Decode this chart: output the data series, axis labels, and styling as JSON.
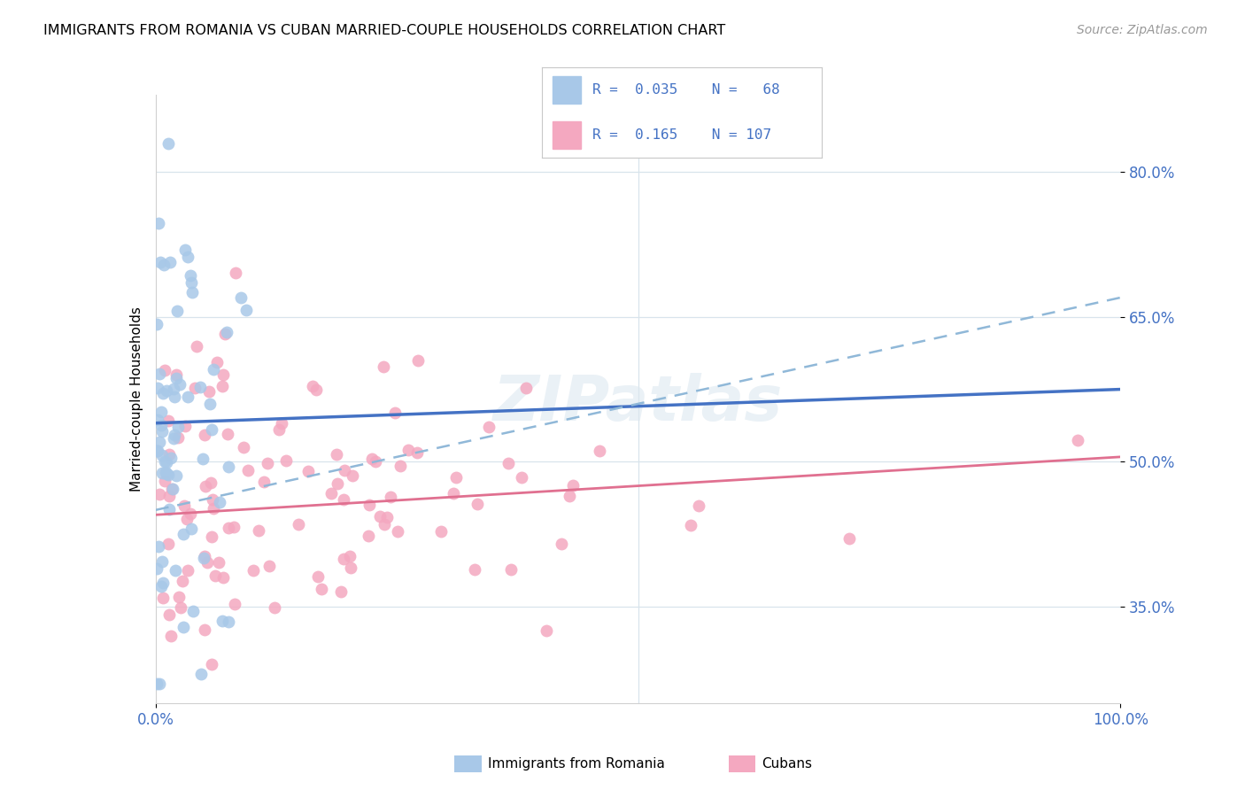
{
  "title": "IMMIGRANTS FROM ROMANIA VS CUBAN MARRIED-COUPLE HOUSEHOLDS CORRELATION CHART",
  "source": "Source: ZipAtlas.com",
  "ylabel": "Married-couple Households",
  "blue_scatter_color": "#a8c8e8",
  "pink_scatter_color": "#f4a8c0",
  "blue_line_color": "#4472c4",
  "pink_line_color": "#e07090",
  "blue_dashed_color": "#90b8d8",
  "grid_color": "#d8e4ec",
  "watermark_color": "#dce8f0",
  "axis_tick_color": "#4472c4",
  "legend_r1": "R =  0.035",
  "legend_n1": "N =   68",
  "legend_r2": "R =  0.165",
  "legend_n2": "N = 107",
  "legend_color": "#4472c4",
  "scatter_size": 100,
  "xlim": [
    0,
    100
  ],
  "ylim": [
    25,
    88
  ],
  "yticks": [
    35,
    50,
    65,
    80
  ],
  "ytick_labels": [
    "35.0%",
    "50.0%",
    "65.0%",
    "80.0%"
  ],
  "xtick_labels": [
    "0.0%",
    "100.0%"
  ],
  "romania_seed": 77,
  "cuban_seed": 42,
  "blue_line_y0": 54.0,
  "blue_line_y1": 57.5,
  "blue_dashed_y0": 45.0,
  "blue_dashed_y1": 67.0,
  "pink_line_y0": 44.5,
  "pink_line_y1": 50.5
}
